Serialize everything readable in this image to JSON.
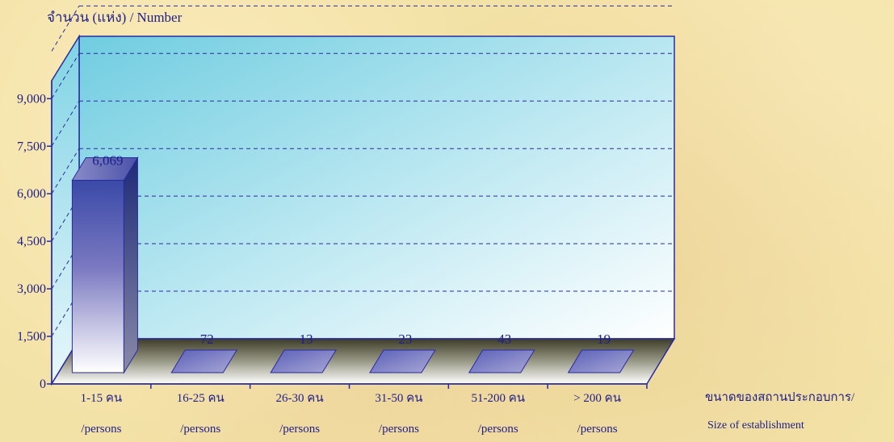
{
  "chart_data": {
    "type": "bar",
    "title": "",
    "ylabel": "จำนวน (แห่ง) / Number",
    "xlabel_thai": "ขนาดของสถานประกอบการ/",
    "xlabel_en": "Size of establishment",
    "categories": [
      {
        "top": "1-15  คน",
        "bottom": "/persons"
      },
      {
        "top": "16-25 คน",
        "bottom": "/persons"
      },
      {
        "top": "26-30 คน",
        "bottom": "/persons"
      },
      {
        "top": "31-50 คน",
        "bottom": "/persons"
      },
      {
        "top": "51-200 คน",
        "bottom": "/persons"
      },
      {
        "top": "> 200  คน",
        "bottom": "/persons"
      }
    ],
    "values": [
      6069,
      72,
      13,
      23,
      43,
      19
    ],
    "value_labels": [
      "6,069",
      "72",
      "13",
      "23",
      "43",
      "19"
    ],
    "y_ticks": [
      0,
      1500,
      3000,
      4500,
      6000,
      7500,
      9000
    ],
    "y_tick_labels": [
      "0",
      "1,500",
      "3,000",
      "4,500",
      "6,000",
      "7,500",
      "9,000"
    ],
    "ylim": [
      0,
      10500
    ],
    "grid": true,
    "colors": {
      "bar_top": "#3a4aa8",
      "bar_bottom": "#ffffff",
      "wall_light": "#e9f7fb",
      "wall_dark": "#6fcde0",
      "axis": "#2a2aa0",
      "grid": "#2a2aa0"
    }
  }
}
